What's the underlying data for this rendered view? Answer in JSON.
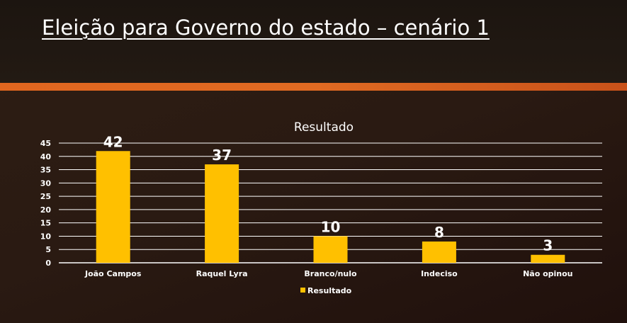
{
  "slide": {
    "title": "Eleição para Governo do estado – cenário 1"
  },
  "chart_data": {
    "type": "bar",
    "title": "Resultado",
    "categories": [
      "João Campos",
      "Raquel Lyra",
      "Branco/nulo",
      "Indeciso",
      "Não opinou"
    ],
    "series": [
      {
        "name": "Resultado",
        "values": [
          42,
          37,
          10,
          8,
          3
        ],
        "color": "#ffc000"
      }
    ],
    "ylim": [
      0,
      45
    ],
    "yticks": [
      0,
      5,
      10,
      15,
      20,
      25,
      30,
      35,
      40,
      45
    ],
    "grid": true,
    "legend": "bottom",
    "data_labels": true
  }
}
